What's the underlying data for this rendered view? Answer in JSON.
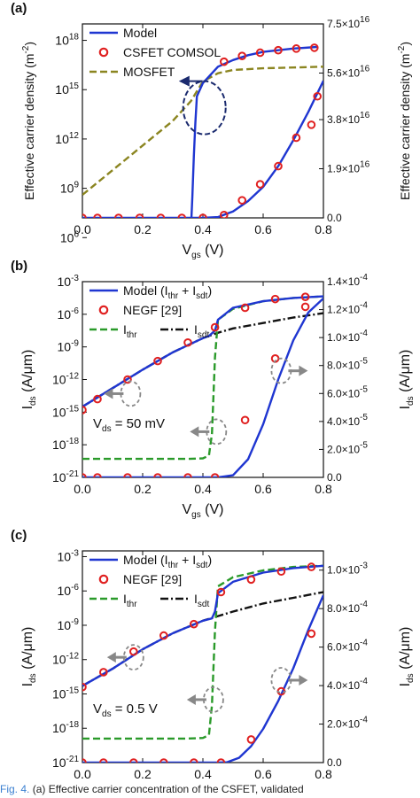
{
  "caption": {
    "label": "Fig. 4.",
    "text": "(a) Effective carrier concentration of the CSFET, validated"
  },
  "chart_data": [
    {
      "type": "line",
      "panel": "(a)",
      "xlabel": "V",
      "xlabel_sub": "gs",
      "xlabel_unit": "(V)",
      "ylabel_left": "Effective carrier density (m",
      "ylabel_left_sup": "-2",
      "ylabel_left_end": ")",
      "ylabel_right": "Effective carrier density (m",
      "ylabel_right_sup": "-2",
      "ylabel_right_end": ")",
      "xlim": [
        0,
        0.8
      ],
      "xticks": [
        "0.0",
        "0.2",
        "0.4",
        "0.6",
        "0.8"
      ],
      "ylim_left_log10": [
        7.2,
        19
      ],
      "yticks_left": [
        {
          "e": 6,
          "label": "10",
          "sup": "6"
        },
        {
          "e": 9,
          "label": "10",
          "sup": "9"
        },
        {
          "e": 12,
          "label": "10",
          "sup": "12"
        },
        {
          "e": 15,
          "label": "10",
          "sup": "15"
        },
        {
          "e": 18,
          "label": "10",
          "sup": "18"
        }
      ],
      "ylim_right": [
        0,
        7.5e+16
      ],
      "yticks_right": [
        {
          "v": 0,
          "label": "0.0"
        },
        {
          "v": 1.9e+16,
          "label": "1.9×10",
          "sup": "16"
        },
        {
          "v": 3.8e+16,
          "label": "3.8×10",
          "sup": "16"
        },
        {
          "v": 5.6e+16,
          "label": "5.6×10",
          "sup": "16"
        },
        {
          "v": 7.5e+16,
          "label": "7.5×10",
          "sup": "16"
        }
      ],
      "legend": [
        {
          "name": "Model",
          "style": "line",
          "color": "#1f36d1"
        },
        {
          "name": "CSFET COMSOL",
          "style": "circle",
          "color": "#e02020"
        },
        {
          "name": "MOSFET",
          "style": "dash",
          "color": "#8b8520"
        }
      ],
      "series": [
        {
          "name": "MOSFET",
          "axis": "left",
          "style": "dash",
          "color": "#8b8520",
          "x": [
            0,
            0.1,
            0.2,
            0.3,
            0.36,
            0.4,
            0.45,
            0.5,
            0.6,
            0.7,
            0.8
          ],
          "log10y": [
            8.6,
            10.1,
            11.6,
            13.1,
            14.3,
            15.5,
            16.0,
            16.2,
            16.3,
            16.35,
            16.4
          ]
        },
        {
          "name": "Model",
          "axis": "left",
          "style": "line",
          "color": "#1f36d1",
          "x": [
            0,
            0.2,
            0.3,
            0.33,
            0.35,
            0.36,
            0.365,
            0.37,
            0.375,
            0.38,
            0.39,
            0.4,
            0.45,
            0.5,
            0.55,
            0.6,
            0.7,
            0.78
          ],
          "log10y": [
            5.0,
            5.0,
            5.0,
            5.1,
            5.6,
            6.4,
            8.5,
            11.0,
            13.0,
            14.6,
            15.0,
            15.4,
            16.4,
            16.8,
            17.1,
            17.3,
            17.5,
            17.6
          ]
        },
        {
          "name": "CSFET COMSOL",
          "axis": "left",
          "style": "circle",
          "color": "#e02020",
          "x": [
            0.47,
            0.53,
            0.59,
            0.65,
            0.71,
            0.77
          ],
          "log10y": [
            16.7,
            17.05,
            17.25,
            17.4,
            17.5,
            17.55
          ]
        },
        {
          "name": "Model",
          "axis": "right",
          "style": "line",
          "color": "#1f36d1",
          "x": [
            0,
            0.3,
            0.4,
            0.45,
            0.5,
            0.55,
            0.6,
            0.65,
            0.7,
            0.75,
            0.8
          ],
          "y": [
            0,
            0,
            0,
            300000000000000.0,
            2500000000000000.0,
            6500000000000000.0,
            1.2e+16,
            2e+16,
            3e+16,
            4.1e+16,
            5.3e+16
          ]
        },
        {
          "name": "CSFET COMSOL",
          "axis": "right",
          "style": "circle",
          "color": "#e02020",
          "x": [
            0,
            0.05,
            0.12,
            0.19,
            0.26,
            0.33,
            0.4,
            0.47,
            0.53,
            0.59,
            0.65,
            0.71,
            0.76,
            0.78
          ],
          "y": [
            0,
            0,
            0,
            0,
            0,
            0,
            0,
            1100000000000000.0,
            6800000000000000.0,
            1.3e+16,
            2e+16,
            3.1e+16,
            3.6e+16,
            4.7e+16
          ]
        }
      ],
      "annotation": {
        "type": "ellipse",
        "x": 0.405,
        "log10y": 13.9,
        "rx": 0.035,
        "arrow_to_x": 0.32,
        "arrow_side": "left"
      }
    },
    {
      "type": "line",
      "panel": "(b)",
      "xlabel": "V",
      "xlabel_sub": "gs",
      "xlabel_unit": "(V)",
      "ylabel_left": "I",
      "ylabel_left_sub": "ds",
      "ylabel_left_unit": "(A/μm)",
      "ylabel_right": "I",
      "ylabel_right_sub": "ds",
      "ylabel_right_unit": "(A/μm)",
      "xlim": [
        0,
        0.8
      ],
      "xticks": [
        "0.0",
        "0.2",
        "0.4",
        "0.6",
        "0.8"
      ],
      "ylim_left_log10": [
        -21,
        -3
      ],
      "yticks_left": [
        {
          "e": -21,
          "label": "10",
          "sup": "-21"
        },
        {
          "e": -18,
          "label": "10",
          "sup": "-18"
        },
        {
          "e": -15,
          "label": "10",
          "sup": "-15"
        },
        {
          "e": -12,
          "label": "10",
          "sup": "-12"
        },
        {
          "e": -9,
          "label": "10",
          "sup": "-9"
        },
        {
          "e": -6,
          "label": "10",
          "sup": "-6"
        },
        {
          "e": -3,
          "label": "10",
          "sup": "-3"
        }
      ],
      "ylim_right": [
        0,
        0.00014
      ],
      "yticks_right": [
        {
          "v": 0,
          "label": "0.0"
        },
        {
          "v": 2e-05,
          "label": "2.0×10",
          "sup": "-5"
        },
        {
          "v": 4e-05,
          "label": "4.0×10",
          "sup": "-5"
        },
        {
          "v": 6e-05,
          "label": "6.0×10",
          "sup": "-5"
        },
        {
          "v": 8e-05,
          "label": "8.0×10",
          "sup": "-5"
        },
        {
          "v": 0.0001,
          "label": "1.0×10",
          "sup": "-4"
        },
        {
          "v": 0.00012,
          "label": "1.2×10",
          "sup": "-4"
        },
        {
          "v": 0.00014,
          "label": "1.4×10",
          "sup": "-4"
        }
      ],
      "legend": [
        {
          "name": "Model (I",
          "name_sub": "thr",
          "name_mid": " + I",
          "name_sub2": "sdt",
          "name_end": ")",
          "style": "line",
          "color": "#1f36d1"
        },
        {
          "name": "NEGF [29]",
          "style": "circle",
          "color": "#e02020"
        },
        {
          "name": "I",
          "name_sub": "thr",
          "style": "dash",
          "color": "#2a9a2a"
        },
        {
          "name": "I",
          "name_sub": "sdt",
          "style": "dashdot",
          "color": "#111111"
        }
      ],
      "vds_label": {
        "pre": "V",
        "sub": "ds",
        "post": " = 50 mV"
      },
      "series": [
        {
          "name": "I_sdt",
          "axis": "left",
          "style": "dashdot",
          "color": "#111111",
          "x": [
            0,
            0.1,
            0.2,
            0.3,
            0.4,
            0.45,
            0.5,
            0.6,
            0.7,
            0.8
          ],
          "log10y": [
            -14.5,
            -12.8,
            -11.1,
            -9.5,
            -8.2,
            -7.7,
            -7.3,
            -6.8,
            -6.3,
            -5.9
          ]
        },
        {
          "name": "I_thr",
          "axis": "left",
          "style": "dash",
          "color": "#2a9a2a",
          "x": [
            0,
            0.2,
            0.35,
            0.4,
            0.42,
            0.43,
            0.44,
            0.45,
            0.5,
            0.6,
            0.7,
            0.8
          ],
          "log10y": [
            -19.3,
            -19.3,
            -19.3,
            -19.25,
            -19.0,
            -17.0,
            -10.0,
            -6.5,
            -5.5,
            -4.8,
            -4.5,
            -4.35
          ]
        },
        {
          "name": "Model (I_thr + I_sdt)",
          "axis": "left",
          "style": "line",
          "color": "#1f36d1",
          "x": [
            0,
            0.1,
            0.2,
            0.3,
            0.4,
            0.42,
            0.44,
            0.45,
            0.5,
            0.6,
            0.7,
            0.8
          ],
          "log10y": [
            -14.5,
            -12.8,
            -11.1,
            -9.5,
            -8.2,
            -8.0,
            -7.5,
            -6.5,
            -5.4,
            -4.8,
            -4.5,
            -4.35
          ]
        },
        {
          "name": "NEGF [29]",
          "axis": "left",
          "style": "circle",
          "color": "#e02020",
          "x": [
            0,
            0.05,
            0.15,
            0.25,
            0.35,
            0.44,
            0.54,
            0.64,
            0.74
          ],
          "log10y": [
            -14.8,
            -13.8,
            -12.0,
            -10.3,
            -8.6,
            -7.2,
            -5.4,
            -4.6,
            -4.4
          ]
        },
        {
          "name": "Model (I_thr + I_sdt)",
          "axis": "right",
          "style": "line",
          "color": "#1f36d1",
          "x": [
            0,
            0.4,
            0.45,
            0.5,
            0.55,
            0.6,
            0.65,
            0.7,
            0.75,
            0.8
          ],
          "y": [
            0,
            0,
            0,
            1.5e-06,
            1.3e-05,
            3.8e-05,
            7e-05,
            9.8e-05,
            0.000118,
            0.000128
          ]
        },
        {
          "name": "NEGF [29]",
          "axis": "right",
          "style": "circle",
          "color": "#e02020",
          "x": [
            0,
            0.05,
            0.15,
            0.25,
            0.35,
            0.44,
            0.54,
            0.64,
            0.74
          ],
          "y": [
            0,
            0,
            0,
            0,
            0,
            0,
            4.1e-05,
            8.5e-05,
            0.000122
          ]
        }
      ],
      "annotations": [
        {
          "x": 0.16,
          "log10y": -13.3,
          "arrow": "left"
        },
        {
          "x": 0.445,
          "log10y": -16.8,
          "arrow": "left"
        },
        {
          "x": 0.66,
          "log10y": -11.2,
          "arrow": "right"
        }
      ]
    },
    {
      "type": "line",
      "panel": "(c)",
      "xlabel": "V",
      "xlabel_sub": "gs",
      "xlabel_unit": "(V)",
      "ylabel_left": "I",
      "ylabel_left_sub": "ds",
      "ylabel_left_unit": "(A/μm)",
      "ylabel_right": "I",
      "ylabel_right_sub": "ds",
      "ylabel_right_unit": "(A/μm)",
      "xlim": [
        0,
        0.8
      ],
      "xticks": [
        "0.0",
        "0.2",
        "0.4",
        "0.6",
        "0.8"
      ],
      "ylim_left_log10": [
        -21,
        -2.5
      ],
      "yticks_left": [
        {
          "e": -21,
          "label": "10",
          "sup": "-21"
        },
        {
          "e": -18,
          "label": "10",
          "sup": "-18"
        },
        {
          "e": -15,
          "label": "10",
          "sup": "-15"
        },
        {
          "e": -12,
          "label": "10",
          "sup": "-12"
        },
        {
          "e": -9,
          "label": "10",
          "sup": "-9"
        },
        {
          "e": -6,
          "label": "10",
          "sup": "-6"
        },
        {
          "e": -3,
          "label": "10",
          "sup": "-3"
        }
      ],
      "ylim_right": [
        0,
        0.0011
      ],
      "yticks_right": [
        {
          "v": 0,
          "label": "0.0"
        },
        {
          "v": 0.0002,
          "label": "2.0×10",
          "sup": "-4"
        },
        {
          "v": 0.0004,
          "label": "4.0×10",
          "sup": "-4"
        },
        {
          "v": 0.0006,
          "label": "6.0×10",
          "sup": "-4"
        },
        {
          "v": 0.0008,
          "label": "8.0×10",
          "sup": "-4"
        },
        {
          "v": 0.001,
          "label": "1.0×10",
          "sup": "-3"
        }
      ],
      "legend": [
        {
          "name": "Model (I",
          "name_sub": "thr",
          "name_mid": " + I",
          "name_sub2": "sdt",
          "name_end": ")",
          "style": "line",
          "color": "#1f36d1"
        },
        {
          "name": "NEGF [29]",
          "style": "circle",
          "color": "#e02020"
        },
        {
          "name": "I",
          "name_sub": "thr",
          "style": "dash",
          "color": "#2a9a2a"
        },
        {
          "name": "I",
          "name_sub": "sdt",
          "style": "dashdot",
          "color": "#111111"
        }
      ],
      "vds_label": {
        "pre": "V",
        "sub": "ds",
        "post": " = 0.5 V"
      },
      "series": [
        {
          "name": "I_sdt",
          "axis": "left",
          "style": "dashdot",
          "color": "#111111",
          "x": [
            0,
            0.1,
            0.2,
            0.3,
            0.4,
            0.45,
            0.5,
            0.6,
            0.7,
            0.8
          ],
          "log10y": [
            -14.3,
            -12.8,
            -11.1,
            -9.7,
            -8.6,
            -8.2,
            -7.8,
            -7.1,
            -6.6,
            -6.1
          ]
        },
        {
          "name": "I_thr",
          "axis": "left",
          "style": "dash",
          "color": "#2a9a2a",
          "x": [
            0,
            0.2,
            0.35,
            0.4,
            0.42,
            0.43,
            0.44,
            0.45,
            0.5,
            0.6,
            0.7,
            0.8
          ],
          "log10y": [
            -18.9,
            -18.9,
            -18.9,
            -18.85,
            -18.6,
            -16.0,
            -9.5,
            -5.6,
            -4.8,
            -4.2,
            -3.9,
            -3.8
          ]
        },
        {
          "name": "Model (I_thr + I_sdt)",
          "axis": "left",
          "style": "line",
          "color": "#1f36d1",
          "x": [
            0,
            0.1,
            0.2,
            0.3,
            0.4,
            0.43,
            0.44,
            0.45,
            0.5,
            0.6,
            0.7,
            0.8
          ],
          "log10y": [
            -14.3,
            -12.8,
            -11.1,
            -9.7,
            -8.6,
            -8.4,
            -7.8,
            -6.2,
            -5.2,
            -4.4,
            -4.0,
            -3.8
          ]
        },
        {
          "name": "NEGF [29]",
          "axis": "left",
          "style": "circle",
          "color": "#e02020",
          "x": [
            0,
            0.07,
            0.17,
            0.27,
            0.37,
            0.46,
            0.56,
            0.66,
            0.76
          ],
          "log10y": [
            -14.4,
            -13.1,
            -11.3,
            -9.9,
            -8.9,
            -6.1,
            -5.0,
            -4.3,
            -3.9
          ]
        },
        {
          "name": "Model (I_thr + I_sdt)",
          "axis": "right",
          "style": "line",
          "color": "#1f36d1",
          "x": [
            0,
            0.45,
            0.48,
            0.52,
            0.56,
            0.6,
            0.65,
            0.7,
            0.75,
            0.8
          ],
          "y": [
            0,
            0,
            2e-06,
            2.5e-05,
            8.5e-05,
            0.000175,
            0.00032,
            0.00049,
            0.00069,
            0.00087
          ]
        },
        {
          "name": "NEGF [29]",
          "axis": "right",
          "style": "circle",
          "color": "#e02020",
          "x": [
            0,
            0.07,
            0.17,
            0.27,
            0.37,
            0.46,
            0.56,
            0.66,
            0.76
          ],
          "y": [
            0,
            0,
            0,
            0,
            0,
            0,
            0.00012,
            0.00037,
            0.00067
          ]
        }
      ],
      "annotations": [
        {
          "x": 0.17,
          "log10y": -11.8,
          "arrow": "left"
        },
        {
          "x": 0.435,
          "log10y": -15.5,
          "arrow": "left"
        },
        {
          "x": 0.66,
          "log10y": -13.8,
          "arrow": "right"
        }
      ]
    }
  ]
}
